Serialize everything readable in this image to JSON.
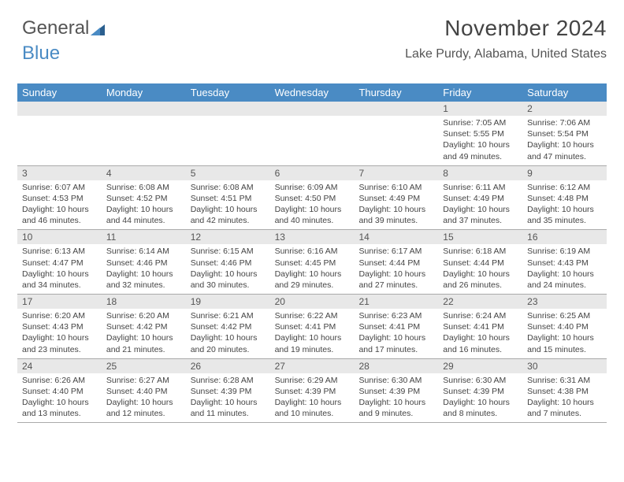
{
  "logo": {
    "word1": "General",
    "word2": "Blue"
  },
  "header": {
    "title": "November 2024",
    "subtitle": "Lake Purdy, Alabama, United States"
  },
  "weekdays": [
    "Sunday",
    "Monday",
    "Tuesday",
    "Wednesday",
    "Thursday",
    "Friday",
    "Saturday"
  ],
  "colors": {
    "header_bar": "#4a8bc4",
    "daynum_bg": "#e8e8e8",
    "text": "#444444",
    "grid_line": "#aaaaaa",
    "background": "#ffffff"
  },
  "layout": {
    "columns": 7,
    "rows": 5,
    "first_weekday_index": 5
  },
  "days": [
    {
      "n": 1,
      "sunrise": "7:05 AM",
      "sunset": "5:55 PM",
      "daylight": "10 hours and 49 minutes."
    },
    {
      "n": 2,
      "sunrise": "7:06 AM",
      "sunset": "5:54 PM",
      "daylight": "10 hours and 47 minutes."
    },
    {
      "n": 3,
      "sunrise": "6:07 AM",
      "sunset": "4:53 PM",
      "daylight": "10 hours and 46 minutes."
    },
    {
      "n": 4,
      "sunrise": "6:08 AM",
      "sunset": "4:52 PM",
      "daylight": "10 hours and 44 minutes."
    },
    {
      "n": 5,
      "sunrise": "6:08 AM",
      "sunset": "4:51 PM",
      "daylight": "10 hours and 42 minutes."
    },
    {
      "n": 6,
      "sunrise": "6:09 AM",
      "sunset": "4:50 PM",
      "daylight": "10 hours and 40 minutes."
    },
    {
      "n": 7,
      "sunrise": "6:10 AM",
      "sunset": "4:49 PM",
      "daylight": "10 hours and 39 minutes."
    },
    {
      "n": 8,
      "sunrise": "6:11 AM",
      "sunset": "4:49 PM",
      "daylight": "10 hours and 37 minutes."
    },
    {
      "n": 9,
      "sunrise": "6:12 AM",
      "sunset": "4:48 PM",
      "daylight": "10 hours and 35 minutes."
    },
    {
      "n": 10,
      "sunrise": "6:13 AM",
      "sunset": "4:47 PM",
      "daylight": "10 hours and 34 minutes."
    },
    {
      "n": 11,
      "sunrise": "6:14 AM",
      "sunset": "4:46 PM",
      "daylight": "10 hours and 32 minutes."
    },
    {
      "n": 12,
      "sunrise": "6:15 AM",
      "sunset": "4:46 PM",
      "daylight": "10 hours and 30 minutes."
    },
    {
      "n": 13,
      "sunrise": "6:16 AM",
      "sunset": "4:45 PM",
      "daylight": "10 hours and 29 minutes."
    },
    {
      "n": 14,
      "sunrise": "6:17 AM",
      "sunset": "4:44 PM",
      "daylight": "10 hours and 27 minutes."
    },
    {
      "n": 15,
      "sunrise": "6:18 AM",
      "sunset": "4:44 PM",
      "daylight": "10 hours and 26 minutes."
    },
    {
      "n": 16,
      "sunrise": "6:19 AM",
      "sunset": "4:43 PM",
      "daylight": "10 hours and 24 minutes."
    },
    {
      "n": 17,
      "sunrise": "6:20 AM",
      "sunset": "4:43 PM",
      "daylight": "10 hours and 23 minutes."
    },
    {
      "n": 18,
      "sunrise": "6:20 AM",
      "sunset": "4:42 PM",
      "daylight": "10 hours and 21 minutes."
    },
    {
      "n": 19,
      "sunrise": "6:21 AM",
      "sunset": "4:42 PM",
      "daylight": "10 hours and 20 minutes."
    },
    {
      "n": 20,
      "sunrise": "6:22 AM",
      "sunset": "4:41 PM",
      "daylight": "10 hours and 19 minutes."
    },
    {
      "n": 21,
      "sunrise": "6:23 AM",
      "sunset": "4:41 PM",
      "daylight": "10 hours and 17 minutes."
    },
    {
      "n": 22,
      "sunrise": "6:24 AM",
      "sunset": "4:41 PM",
      "daylight": "10 hours and 16 minutes."
    },
    {
      "n": 23,
      "sunrise": "6:25 AM",
      "sunset": "4:40 PM",
      "daylight": "10 hours and 15 minutes."
    },
    {
      "n": 24,
      "sunrise": "6:26 AM",
      "sunset": "4:40 PM",
      "daylight": "10 hours and 13 minutes."
    },
    {
      "n": 25,
      "sunrise": "6:27 AM",
      "sunset": "4:40 PM",
      "daylight": "10 hours and 12 minutes."
    },
    {
      "n": 26,
      "sunrise": "6:28 AM",
      "sunset": "4:39 PM",
      "daylight": "10 hours and 11 minutes."
    },
    {
      "n": 27,
      "sunrise": "6:29 AM",
      "sunset": "4:39 PM",
      "daylight": "10 hours and 10 minutes."
    },
    {
      "n": 28,
      "sunrise": "6:30 AM",
      "sunset": "4:39 PM",
      "daylight": "10 hours and 9 minutes."
    },
    {
      "n": 29,
      "sunrise": "6:30 AM",
      "sunset": "4:39 PM",
      "daylight": "10 hours and 8 minutes."
    },
    {
      "n": 30,
      "sunrise": "6:31 AM",
      "sunset": "4:38 PM",
      "daylight": "10 hours and 7 minutes."
    }
  ],
  "labels": {
    "sunrise": "Sunrise:",
    "sunset": "Sunset:",
    "daylight": "Daylight:"
  }
}
